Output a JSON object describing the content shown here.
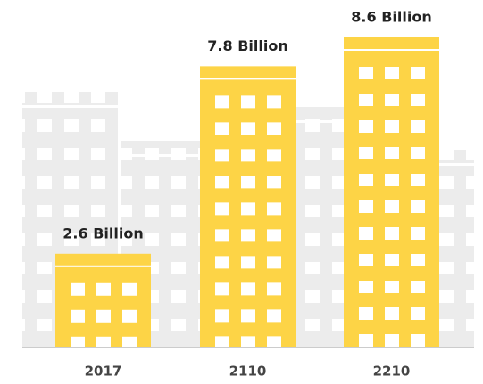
{
  "chart_data": {
    "type": "bar",
    "categories": [
      "2017",
      "2110",
      "2210"
    ],
    "values": [
      2.6,
      7.8,
      8.6
    ],
    "value_labels": [
      "2.6 Billion",
      "7.8 Billion",
      "8.6 Billion"
    ],
    "color": "#fdd446"
  }
}
